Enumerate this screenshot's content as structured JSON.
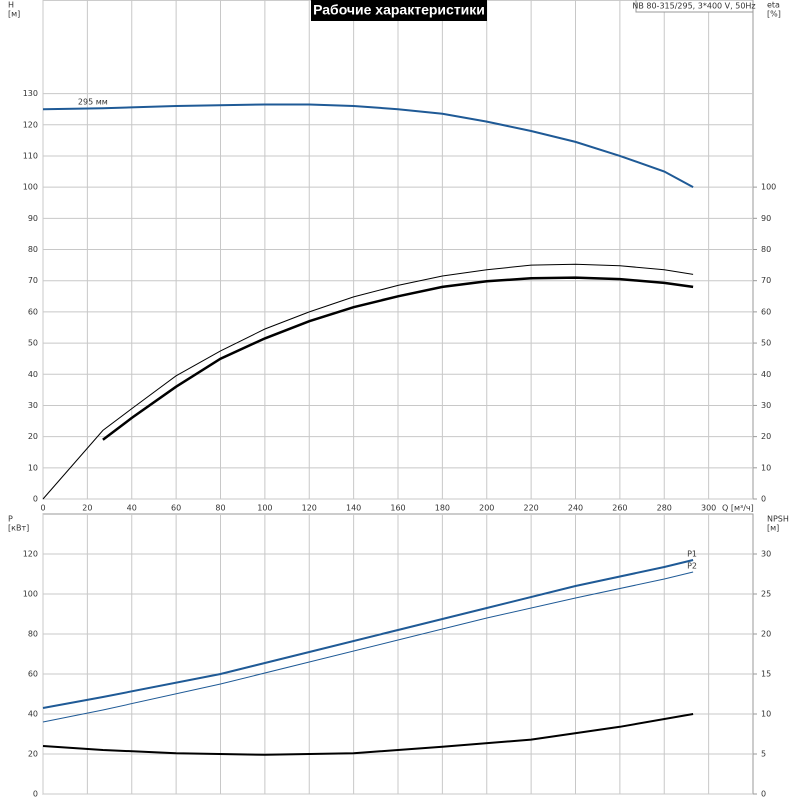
{
  "chart_data": [
    {
      "type": "line",
      "title": "Рабочие характеристики",
      "subtitle": "NB 80-315/295, 3*400 V, 50Hz",
      "ylabel": [
        "H",
        "[м]"
      ],
      "y2label": [
        "eta",
        "[%]"
      ],
      "xlabel": "Q [м³/ч]",
      "xlim": [
        0,
        320
      ],
      "xticks": [
        0,
        20,
        40,
        60,
        80,
        100,
        120,
        140,
        160,
        180,
        200,
        220,
        240,
        260,
        280,
        300
      ],
      "ylim": [
        0,
        160
      ],
      "yticks": [
        0,
        10,
        20,
        30,
        40,
        50,
        60,
        70,
        80,
        90,
        100,
        110,
        120,
        130
      ],
      "y2lim": [
        0,
        160
      ],
      "y2ticks": [
        0,
        10,
        20,
        30,
        40,
        50,
        60,
        70,
        80,
        90,
        100
      ],
      "grid": true,
      "series": [
        {
          "name": "295 мм",
          "color": "#1f5a96",
          "x": [
            0,
            27,
            60,
            100,
            120,
            140,
            160,
            180,
            200,
            220,
            240,
            260,
            280,
            293
          ],
          "values": [
            125,
            125.3,
            126,
            126.5,
            126.5,
            126,
            125,
            123.5,
            121,
            118,
            114.5,
            110,
            105,
            100
          ]
        },
        {
          "color": "#000000",
          "axis": "y2",
          "x": [
            0,
            27,
            40,
            60,
            80,
            100,
            120,
            140,
            160,
            180,
            200,
            220,
            240,
            260,
            280,
            293
          ],
          "values": [
            0,
            22,
            29,
            39.5,
            47.5,
            54.5,
            60,
            64.8,
            68.5,
            71.5,
            73.5,
            75,
            75.3,
            74.8,
            73.5,
            72
          ]
        },
        {
          "color": "#000000",
          "axis": "y2",
          "x": [
            27,
            40,
            60,
            80,
            100,
            120,
            140,
            160,
            180,
            200,
            220,
            240,
            260,
            280,
            293
          ],
          "values": [
            19,
            26,
            36,
            45,
            51.5,
            57,
            61.5,
            65,
            68,
            69.8,
            70.8,
            71,
            70.5,
            69.3,
            68
          ]
        }
      ]
    },
    {
      "type": "line",
      "ylabel": [
        "P",
        "[кВт]"
      ],
      "y2label": [
        "NPSH",
        "[м]"
      ],
      "xlim": [
        0,
        320
      ],
      "xticks": [
        0,
        20,
        40,
        60,
        80,
        100,
        120,
        140,
        160,
        180,
        200,
        220,
        240,
        260,
        280,
        300
      ],
      "ylim": [
        0,
        140
      ],
      "yticks": [
        0,
        20,
        40,
        60,
        80,
        100,
        120
      ],
      "y2lim": [
        0,
        35
      ],
      "y2ticks": [
        0,
        5,
        10,
        15,
        20,
        25,
        30
      ],
      "grid": true,
      "series": [
        {
          "name": "P1",
          "color": "#1f5a96",
          "x": [
            0,
            27,
            80,
            120,
            160,
            200,
            240,
            280,
            293
          ],
          "values": [
            43,
            48.5,
            60,
            71,
            82,
            93,
            104,
            113.5,
            117
          ]
        },
        {
          "name": "P2",
          "color": "#1f5a96",
          "x": [
            0,
            27,
            80,
            120,
            160,
            200,
            240,
            280,
            293
          ],
          "values": [
            36,
            42,
            55,
            66,
            77,
            88,
            98,
            107.5,
            111
          ]
        },
        {
          "color": "#000000",
          "axis": "y2",
          "x": [
            0,
            27,
            60,
            100,
            140,
            180,
            220,
            260,
            293
          ],
          "values": [
            6,
            5.5,
            5.1,
            4.9,
            5.1,
            5.9,
            6.8,
            8.4,
            10
          ]
        }
      ]
    }
  ]
}
